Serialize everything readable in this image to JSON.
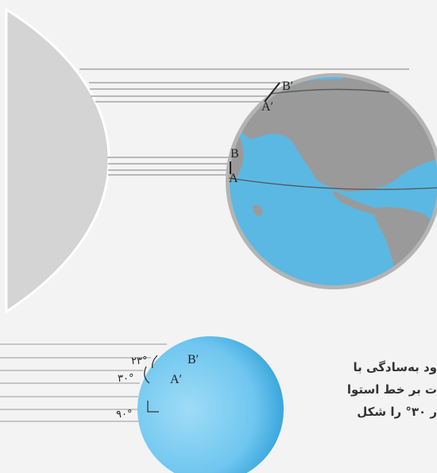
{
  "top": {
    "labels": {
      "b_prime": "B′",
      "a_prime": "A′",
      "b": "B",
      "a": "A"
    }
  },
  "bottom": {
    "labels": {
      "b_prime": "B′",
      "a_prime": "A′"
    },
    "angles": {
      "deg23": "۲۳°",
      "deg30": "۳۰°",
      "deg90": "۹۰°"
    }
  },
  "caption": {
    "lines": [
      "ود به‌سادگی با",
      "ت بر خط استوا",
      "ر ۳۰° را شکل"
    ]
  },
  "colors": {
    "sun": "#d4d4d4",
    "ocean": "#5bb8e2",
    "land": "#9a9a9a",
    "globe_rim": "#b4b4b4",
    "ray": "#b8b8b8"
  }
}
